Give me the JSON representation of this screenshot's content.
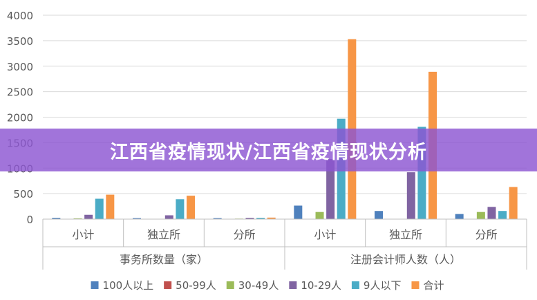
{
  "banner": {
    "text": "江西省疫情现状/江西省疫情现状分析"
  },
  "chart_data": {
    "type": "bar",
    "ylim": [
      0,
      4000
    ],
    "yticks": [
      0,
      500,
      1000,
      1500,
      2000,
      2500,
      3000,
      3500,
      4000
    ],
    "grid": true,
    "legend_position": "bottom",
    "groups": [
      {
        "label": "事务所数量（家）",
        "categories": [
          "小计",
          "独立所",
          "分所"
        ]
      },
      {
        "label": "注册会计师人数（人）",
        "categories": [
          "小计",
          "独立所",
          "分所"
        ]
      }
    ],
    "series": [
      {
        "name": "100人以上",
        "color": "#4F81BD",
        "values": [
          25,
          20,
          20,
          265,
          160,
          100
        ]
      },
      {
        "name": "50-99人",
        "color": "#C0504D",
        "values": [
          0,
          0,
          0,
          0,
          0,
          0
        ]
      },
      {
        "name": "30-49人",
        "color": "#9BBB59",
        "values": [
          15,
          0,
          10,
          140,
          0,
          140
        ]
      },
      {
        "name": "10-29人",
        "color": "#8064A2",
        "values": [
          85,
          75,
          25,
          1180,
          920,
          240
        ]
      },
      {
        "name": "9人以下",
        "color": "#4BACC6",
        "values": [
          400,
          390,
          25,
          1970,
          1810,
          160
        ]
      },
      {
        "name": "合计",
        "color": "#F79646",
        "values": [
          480,
          460,
          30,
          3530,
          2890,
          630
        ]
      }
    ]
  }
}
